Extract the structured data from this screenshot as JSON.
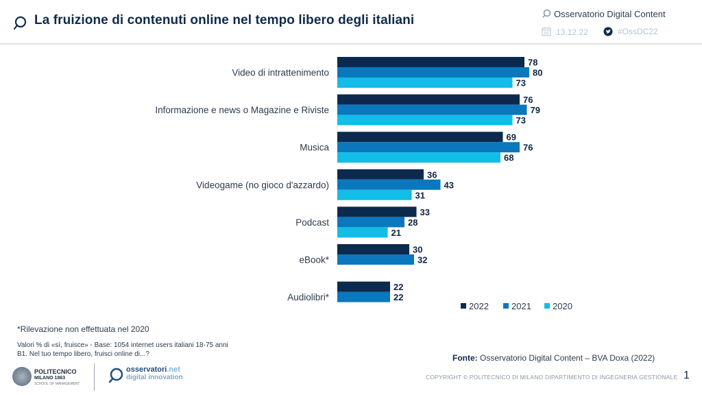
{
  "header": {
    "title": "La fruizione di contenuti online nel tempo libero degli italiani",
    "observatory": "Osservatorio Digital Content",
    "date": "13.12.22",
    "hashtag": "#OssDC22",
    "icons": {
      "title": "search-icon",
      "observatory": "search-icon",
      "date": "calendar-icon",
      "social": "twitter-icon"
    }
  },
  "colors": {
    "y2022": "#0b2a4e",
    "y2021": "#0b77bd",
    "y2020": "#12bde8",
    "title": "#0e2a4a"
  },
  "chart_data": {
    "type": "bar",
    "orientation": "horizontal",
    "title": "La fruizione di contenuti online nel tempo libero degli italiani",
    "xlabel": "",
    "ylabel": "",
    "unit": "%",
    "xlim": [
      0,
      80
    ],
    "grid": false,
    "legend_position": "bottom-right",
    "categories": [
      "Video di intrattenimento",
      "Informazione e news o Magazine e Riviste",
      "Musica",
      "Videogame (no gioco d'azzardo)",
      "Podcast",
      "eBook*",
      "Audiolibri*"
    ],
    "series": [
      {
        "name": "2022",
        "values": [
          78,
          76,
          69,
          36,
          33,
          30,
          22
        ]
      },
      {
        "name": "2021",
        "values": [
          80,
          79,
          76,
          43,
          28,
          32,
          22
        ]
      },
      {
        "name": "2020",
        "values": [
          73,
          73,
          68,
          31,
          21,
          null,
          null
        ]
      }
    ]
  },
  "notes": {
    "asterisk": "*Rilevazione non effettuata nel 2020",
    "base": "Valori % di «sì, fruisce» - Base: 1054 internet users italiani 18-75 anni",
    "question": "B1. Nel tuo tempo libero, fruisci online di...?"
  },
  "footer": {
    "source_label": "Fonte:",
    "source_text": "Osservatorio Digital Content – BVA Doxa (2022)",
    "copyright": "COPYRIGHT © POLITECNICO DI MILANO DIPARTIMENTO DI INGEGNERIA GESTIONALE",
    "page_number": "1",
    "logo_poli_1": "POLITECNICO",
    "logo_poli_2": "MILANO 1863",
    "logo_poli_3": "SCHOOL OF MANAGEMENT",
    "logo_obs_1": "osservatori",
    "logo_obs_net": ".net",
    "logo_obs_2": "digital innovation"
  }
}
